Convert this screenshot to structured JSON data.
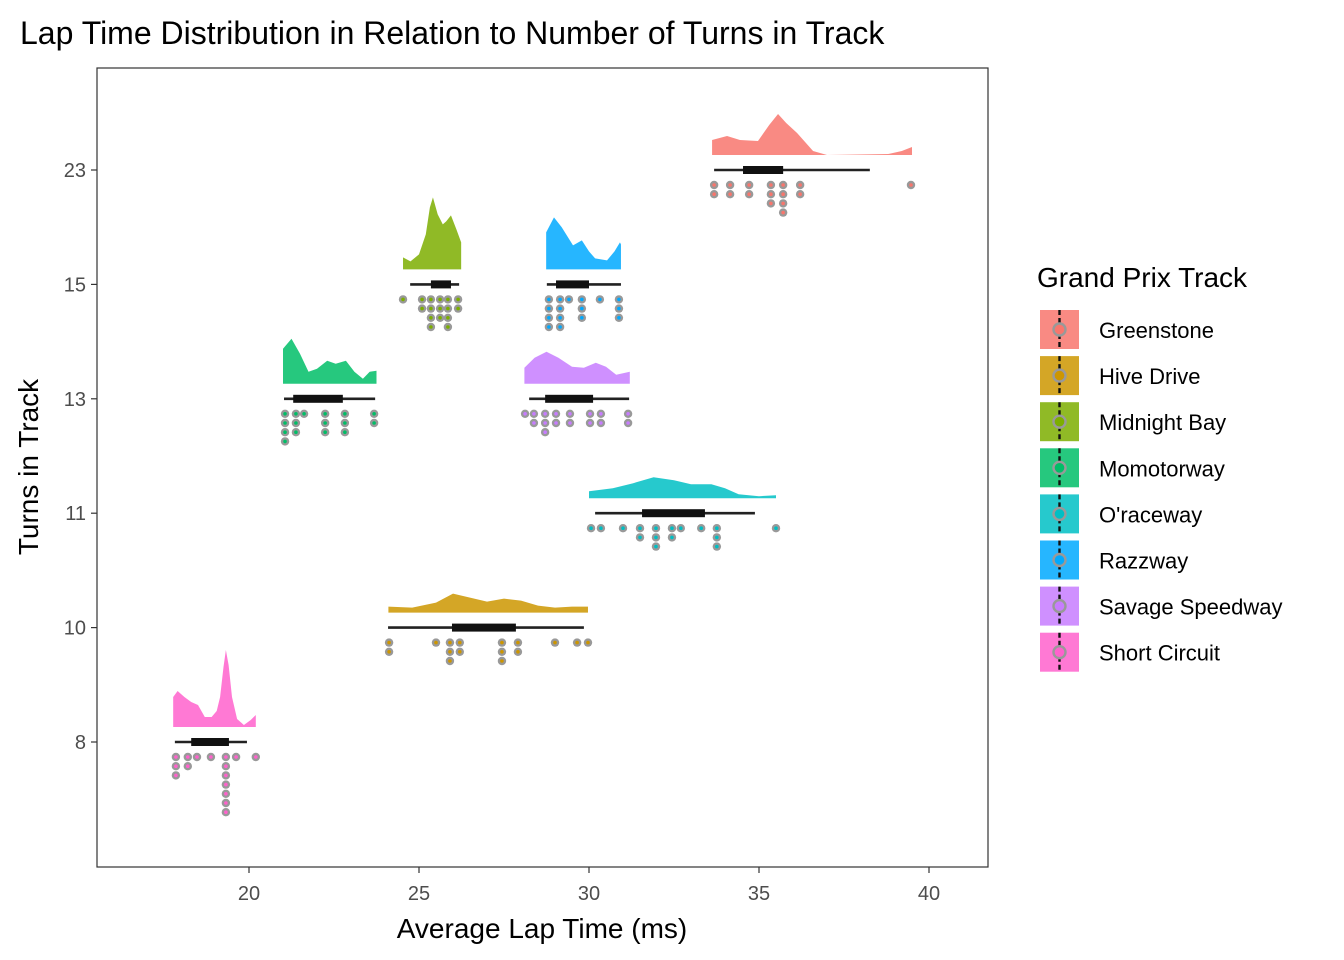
{
  "chart_data": {
    "type": "raincloud",
    "title": "Lap Time Distribution in Relation to Number of Turns in Track",
    "xlabel": "Average Lap Time (ms)",
    "ylabel": "Turns in Track",
    "xlim": [
      15.5,
      41.7
    ],
    "x_ticks": [
      20,
      25,
      30,
      35,
      40
    ],
    "y_categories": [
      "8",
      "10",
      "11",
      "13",
      "15",
      "23"
    ],
    "grid": false,
    "legend": {
      "title": "Grand Prix Track",
      "position": "right"
    },
    "series": [
      {
        "name": "Greenstone",
        "color": "#F8766D",
        "turns": "23",
        "density": [
          [
            33.62,
            0.15
          ],
          [
            34.06,
            0.19
          ],
          [
            34.44,
            0.15
          ],
          [
            34.97,
            0.14
          ],
          [
            35.3,
            0.3
          ],
          [
            35.56,
            0.41
          ],
          [
            35.8,
            0.32
          ],
          [
            36.12,
            0.22
          ],
          [
            36.59,
            0.04
          ],
          [
            37.0,
            0.0
          ],
          [
            38.8,
            0.01
          ],
          [
            39.2,
            0.04
          ],
          [
            39.5,
            0.08
          ]
        ],
        "box": {
          "whisker_low": 33.68,
          "q1": 34.53,
          "q3": 35.71,
          "whisker_high": 38.26
        },
        "points": [
          [
            33.68,
            2
          ],
          [
            34.15,
            2
          ],
          [
            34.71,
            2
          ],
          [
            35.35,
            3
          ],
          [
            35.71,
            4
          ],
          [
            36.21,
            2
          ],
          [
            39.47,
            1
          ]
        ]
      },
      {
        "name": "Hive Drive",
        "color": "#CD9600",
        "turns": "10",
        "density": [
          [
            24.1,
            0.06
          ],
          [
            24.8,
            0.05
          ],
          [
            25.5,
            0.1
          ],
          [
            26.0,
            0.19
          ],
          [
            26.5,
            0.15
          ],
          [
            27.0,
            0.11
          ],
          [
            27.5,
            0.14
          ],
          [
            28.0,
            0.12
          ],
          [
            28.5,
            0.07
          ],
          [
            29.0,
            0.05
          ],
          [
            29.5,
            0.06
          ],
          [
            29.97,
            0.06
          ]
        ],
        "box": {
          "whisker_low": 24.09,
          "q1": 25.97,
          "q3": 27.85,
          "whisker_high": 29.85
        },
        "points": [
          [
            24.12,
            2
          ],
          [
            25.5,
            1
          ],
          [
            25.91,
            3
          ],
          [
            26.2,
            2
          ],
          [
            27.44,
            3
          ],
          [
            27.91,
            2
          ],
          [
            29.0,
            1
          ],
          [
            29.65,
            1
          ],
          [
            29.97,
            1
          ]
        ]
      },
      {
        "name": "Midnight Bay",
        "color": "#7CAE00",
        "turns": "15",
        "density": [
          [
            24.53,
            0.12
          ],
          [
            24.75,
            0.08
          ],
          [
            25.0,
            0.15
          ],
          [
            25.2,
            0.35
          ],
          [
            25.32,
            0.62
          ],
          [
            25.41,
            0.72
          ],
          [
            25.55,
            0.55
          ],
          [
            25.7,
            0.45
          ],
          [
            25.8,
            0.48
          ],
          [
            25.94,
            0.54
          ],
          [
            26.1,
            0.4
          ],
          [
            26.24,
            0.27
          ]
        ],
        "box": {
          "whisker_low": 24.74,
          "q1": 25.35,
          "q3": 25.94,
          "whisker_high": 26.18
        },
        "points": [
          [
            24.53,
            1
          ],
          [
            25.09,
            2
          ],
          [
            25.35,
            4
          ],
          [
            25.62,
            3
          ],
          [
            25.85,
            4
          ],
          [
            26.15,
            2
          ]
        ]
      },
      {
        "name": "Momotorway",
        "color": "#00BE67",
        "turns": "13",
        "density": [
          [
            21.0,
            0.35
          ],
          [
            21.25,
            0.45
          ],
          [
            21.5,
            0.3
          ],
          [
            21.75,
            0.12
          ],
          [
            22.0,
            0.15
          ],
          [
            22.3,
            0.23
          ],
          [
            22.55,
            0.2
          ],
          [
            22.85,
            0.23
          ],
          [
            23.1,
            0.12
          ],
          [
            23.35,
            0.05
          ],
          [
            23.55,
            0.12
          ],
          [
            23.75,
            0.13
          ]
        ],
        "box": {
          "whisker_low": 21.03,
          "q1": 21.3,
          "q3": 22.76,
          "whisker_high": 23.71
        },
        "points": [
          [
            21.06,
            4
          ],
          [
            21.38,
            3
          ],
          [
            21.62,
            1
          ],
          [
            22.24,
            3
          ],
          [
            22.82,
            3
          ],
          [
            23.68,
            2
          ]
        ]
      },
      {
        "name": "O'raceway",
        "color": "#00BFC4",
        "turns": "11",
        "density": [
          [
            30.0,
            0.07
          ],
          [
            30.7,
            0.1
          ],
          [
            31.3,
            0.15
          ],
          [
            31.9,
            0.21
          ],
          [
            32.5,
            0.18
          ],
          [
            33.0,
            0.14
          ],
          [
            33.6,
            0.14
          ],
          [
            34.0,
            0.1
          ],
          [
            34.4,
            0.04
          ],
          [
            35.0,
            0.02
          ],
          [
            35.5,
            0.03
          ]
        ],
        "box": {
          "whisker_low": 30.18,
          "q1": 31.56,
          "q3": 33.41,
          "whisker_high": 34.88
        },
        "points": [
          [
            30.06,
            1
          ],
          [
            30.35,
            1
          ],
          [
            31.0,
            1
          ],
          [
            31.5,
            2
          ],
          [
            31.97,
            3
          ],
          [
            32.44,
            2
          ],
          [
            32.7,
            1
          ],
          [
            33.3,
            1
          ],
          [
            33.76,
            3
          ],
          [
            35.5,
            1
          ]
        ]
      },
      {
        "name": "Razzway",
        "color": "#00A9FF",
        "turns": "15",
        "density": [
          [
            28.74,
            0.37
          ],
          [
            28.97,
            0.52
          ],
          [
            29.2,
            0.42
          ],
          [
            29.53,
            0.24
          ],
          [
            29.79,
            0.29
          ],
          [
            30.0,
            0.18
          ],
          [
            30.18,
            0.11
          ],
          [
            30.53,
            0.09
          ],
          [
            30.75,
            0.18
          ],
          [
            30.91,
            0.27
          ],
          [
            30.94,
            0.25
          ]
        ],
        "box": {
          "whisker_low": 28.76,
          "q1": 29.03,
          "q3": 30.0,
          "whisker_high": 30.94
        },
        "points": [
          [
            28.82,
            4
          ],
          [
            29.15,
            4
          ],
          [
            29.41,
            1
          ],
          [
            29.79,
            3
          ],
          [
            30.32,
            1
          ],
          [
            30.88,
            3
          ]
        ]
      },
      {
        "name": "Savage Speedway",
        "color": "#C77CFF",
        "turns": "13",
        "density": [
          [
            28.1,
            0.16
          ],
          [
            28.4,
            0.26
          ],
          [
            28.75,
            0.32
          ],
          [
            29.1,
            0.26
          ],
          [
            29.5,
            0.17
          ],
          [
            29.85,
            0.16
          ],
          [
            30.2,
            0.21
          ],
          [
            30.5,
            0.17
          ],
          [
            30.8,
            0.09
          ],
          [
            31.2,
            0.12
          ]
        ],
        "box": {
          "whisker_low": 28.24,
          "q1": 28.71,
          "q3": 30.12,
          "whisker_high": 31.18
        },
        "points": [
          [
            28.12,
            1
          ],
          [
            28.38,
            2
          ],
          [
            28.71,
            3
          ],
          [
            29.03,
            2
          ],
          [
            29.44,
            2
          ],
          [
            30.03,
            2
          ],
          [
            30.35,
            2
          ],
          [
            31.15,
            2
          ]
        ]
      },
      {
        "name": "Short Circuit",
        "color": "#FF61CC",
        "turns": "8",
        "density": [
          [
            17.77,
            0.3
          ],
          [
            17.9,
            0.36
          ],
          [
            18.1,
            0.3
          ],
          [
            18.3,
            0.25
          ],
          [
            18.5,
            0.22
          ],
          [
            18.7,
            0.1
          ],
          [
            18.9,
            0.1
          ],
          [
            19.05,
            0.16
          ],
          [
            19.15,
            0.3
          ],
          [
            19.25,
            0.6
          ],
          [
            19.32,
            0.77
          ],
          [
            19.4,
            0.62
          ],
          [
            19.5,
            0.3
          ],
          [
            19.65,
            0.08
          ],
          [
            19.85,
            0.02
          ],
          [
            20.05,
            0.07
          ],
          [
            20.2,
            0.12
          ]
        ],
        "box": {
          "whisker_low": 17.82,
          "q1": 18.3,
          "q3": 19.41,
          "whisker_high": 19.94
        },
        "points": [
          [
            17.85,
            3
          ],
          [
            18.2,
            2
          ],
          [
            18.47,
            1
          ],
          [
            18.88,
            1
          ],
          [
            19.32,
            7
          ],
          [
            19.62,
            1
          ],
          [
            20.2,
            1
          ]
        ]
      }
    ]
  }
}
